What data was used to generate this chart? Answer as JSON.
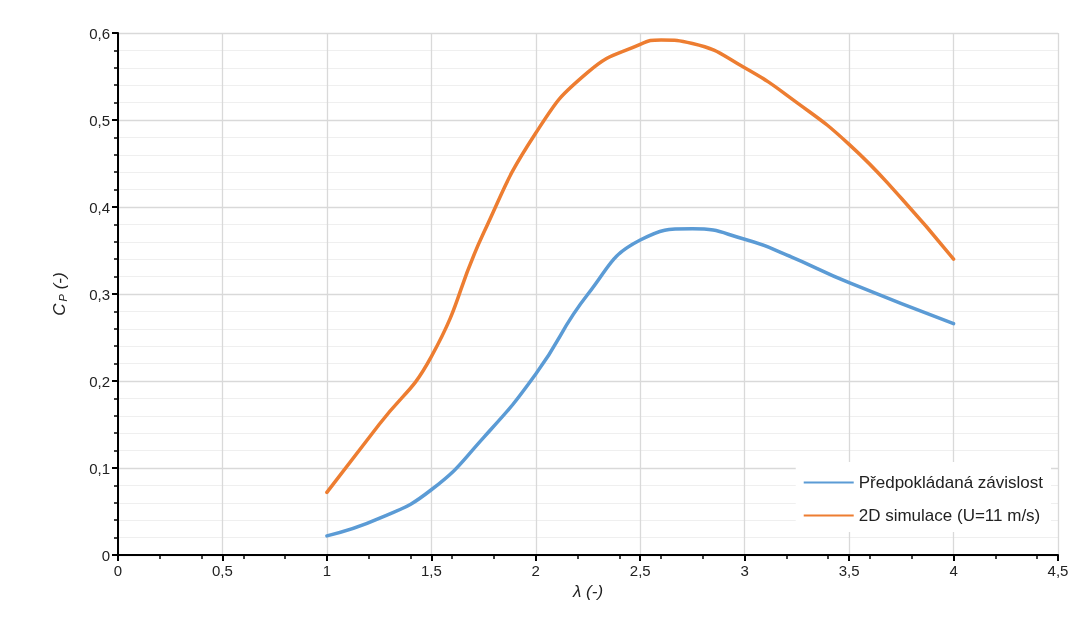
{
  "chart_data": {
    "type": "line",
    "xlabel": "λ (-)",
    "ylabel": "C$_{P}$ (-)",
    "xlim": [
      0,
      4.5
    ],
    "xticks": [
      0,
      {
        "value": 0.5,
        "label": "0,5"
      },
      1,
      {
        "value": 1.5,
        "label": "1,5"
      },
      2,
      {
        "value": 2.5,
        "label": "2,5"
      },
      3,
      {
        "value": 3.5,
        "label": "3,5"
      },
      4,
      {
        "value": 4.5,
        "label": "4,5"
      }
    ],
    "ylim": [
      0,
      0.6
    ],
    "yticks": [
      0,
      {
        "value": 0.1,
        "label": "0,1"
      },
      {
        "value": 0.2,
        "label": "0,2"
      },
      {
        "value": 0.3,
        "label": "0,3"
      },
      {
        "value": 0.4,
        "label": "0,4"
      },
      {
        "value": 0.5,
        "label": "0,5"
      },
      {
        "value": 0.6,
        "label": "0,6"
      }
    ],
    "grid": true,
    "legend": "bottom right",
    "marker": "none",
    "line_style": "solid",
    "series": [
      {
        "name": "Předpokládaná závislost",
        "color": "#5b9bd5",
        "x": [
          1,
          1.25,
          1.5,
          1.75,
          2,
          2.25,
          2.5,
          2.75,
          3,
          3.2,
          3.5,
          4
        ],
        "values": [
          0.022,
          0.042,
          0.075,
          0.135,
          0.208,
          0.3,
          0.362,
          0.375,
          0.363,
          0.345,
          0.313,
          0.266
        ]
      },
      {
        "name": "2D simulace (U=11 m/s)",
        "color": "#ed7d31",
        "x": [
          1,
          1.25,
          1.5,
          1.75,
          2,
          2.25,
          2.5,
          2.6,
          2.75,
          3,
          3.25,
          3.5,
          3.75,
          4
        ],
        "values": [
          0.072,
          0.15,
          0.228,
          0.37,
          0.485,
          0.555,
          0.587,
          0.592,
          0.588,
          0.56,
          0.52,
          0.472,
          0.41,
          0.34
        ]
      }
    ]
  }
}
